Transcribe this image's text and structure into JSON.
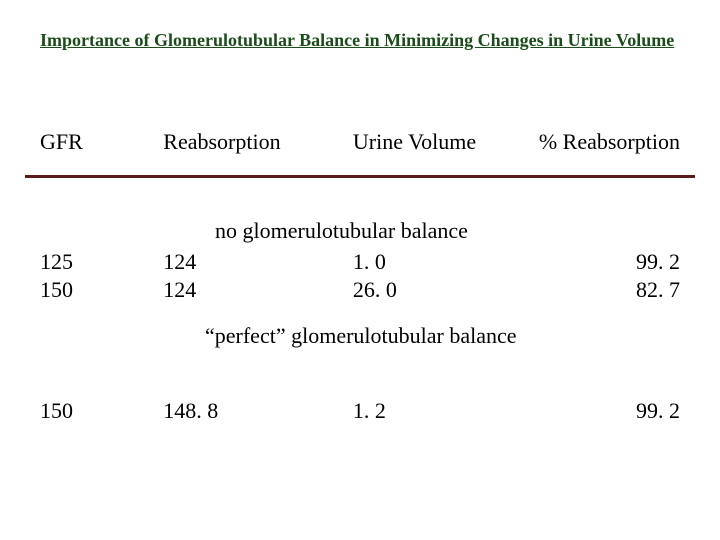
{
  "title": "Importance of Glomerulotubular Balance in Minimizing Changes in Urine Volume",
  "columns": {
    "gfr": "GFR",
    "reabsorption": "Reabsorption",
    "urine_volume": "Urine Volume",
    "pct_reabsorption": "% Reabsorption"
  },
  "section1": {
    "heading": "no glomerulotubular balance",
    "rows": [
      {
        "gfr": "125",
        "reabs": "124",
        "urine": "1. 0",
        "pct": "99. 2"
      },
      {
        "gfr": "150",
        "reabs": "124",
        "urine": "26. 0",
        "pct": "82. 7"
      }
    ]
  },
  "section2": {
    "heading": "“perfect” glomerulotubular balance",
    "rows": [
      {
        "gfr": "150",
        "reabs": "148. 8",
        "urine": "1. 2",
        "pct": "99. 2"
      }
    ]
  },
  "colors": {
    "title": "#1a4d1a",
    "rule": "#5a1a1a",
    "background": "#ffffff",
    "text": "#000000"
  },
  "fonts": {
    "title_size_pt": 18,
    "body_size_pt": 22,
    "family": "Times New Roman"
  }
}
